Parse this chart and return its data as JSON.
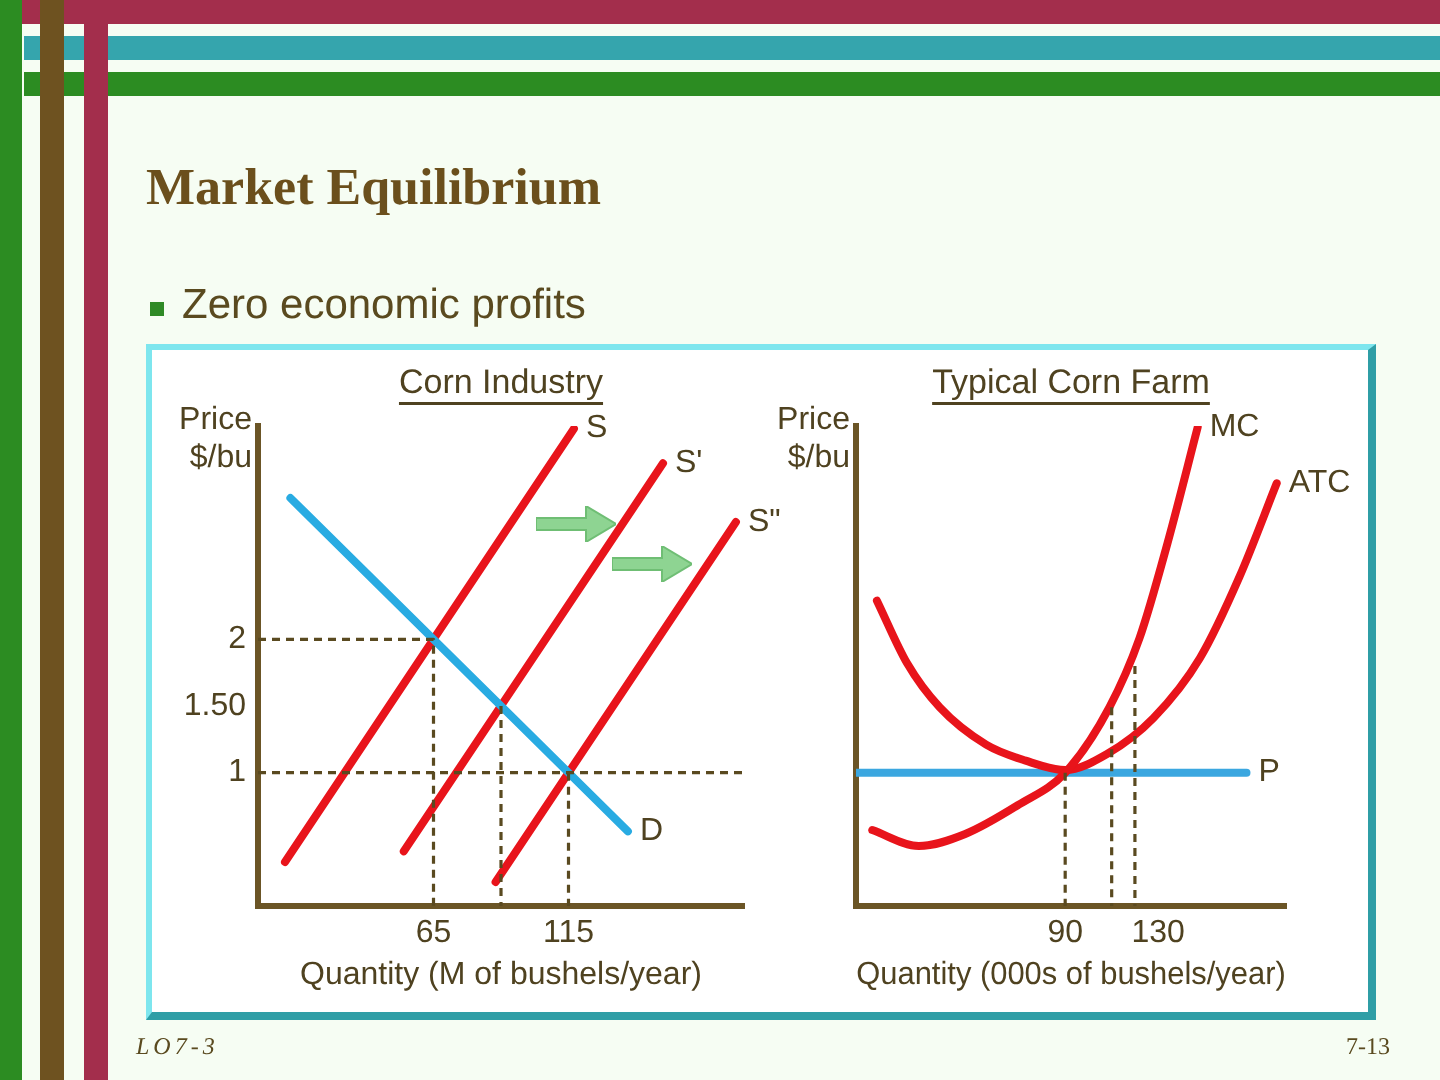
{
  "chart_data": [
    {
      "type": "line",
      "title": "Corn Industry",
      "xlabel": "Quantity (M of bushels/year)",
      "ylabel": "Price $/bu",
      "xlim": [
        0,
        180
      ],
      "xticks": [
        65,
        115
      ],
      "ylim": [
        0,
        3.6
      ],
      "yticks": [
        2,
        {
          "value": 1.5,
          "label": "1.50"
        },
        1
      ],
      "marker": "none",
      "series": [
        {
          "name": "D",
          "color": "#29abe2",
          "x": [
            12,
            137
          ],
          "values": [
            3.06,
            0.56
          ]
        },
        {
          "name": "S",
          "color": "#e8141b",
          "x": [
            10,
            117
          ],
          "values": [
            0.33,
            3.58
          ]
        },
        {
          "name": "S'",
          "color": "#e8141b",
          "x": [
            54,
            150
          ],
          "values": [
            0.41,
            3.32
          ]
        },
        {
          "name": "S\"",
          "color": "#e8141b",
          "x": [
            88,
            177
          ],
          "values": [
            0.18,
            2.88
          ]
        },
        {
          "color": "#5a4a20",
          "line_style": "dashed",
          "x": [
            0,
            65,
            65
          ],
          "values": [
            2,
            2,
            0
          ]
        },
        {
          "color": "#5a4a20",
          "line_style": "dashed",
          "x": [
            90,
            90
          ],
          "values": [
            1.5,
            0
          ]
        },
        {
          "color": "#5a4a20",
          "line_style": "dashed",
          "x": [
            0,
            180
          ],
          "values": [
            1,
            1
          ]
        },
        {
          "color": "#5a4a20",
          "line_style": "dashed",
          "x": [
            115,
            115
          ],
          "values": [
            1,
            0
          ]
        }
      ],
      "annotations": [
        "Market Equilibrium",
        "Zero economic profits",
        "LO7-3"
      ]
    },
    {
      "type": "line",
      "title": "Typical Corn Farm",
      "xlabel": "Quantity (000s of bushels/year)",
      "ylabel": "Price $/bu",
      "xlim": [
        0,
        185
      ],
      "xticks": [
        90,
        130
      ],
      "ylim": [
        0,
        3.6
      ],
      "tick_labels": "x",
      "marker": "none",
      "series": [
        {
          "name": "MC",
          "color": "#e8141b",
          "x": [
            7,
            27,
            47,
            70,
            90,
            109,
            122,
            134,
            147
          ],
          "values": [
            0.57,
            0.45,
            0.54,
            0.76,
            1.0,
            1.49,
            2.01,
            2.72,
            3.59
          ]
        },
        {
          "name": "ATC",
          "color": "#e8141b",
          "x": [
            9,
            22,
            36,
            56,
            73,
            90,
            108,
            128,
            148,
            165,
            181
          ],
          "values": [
            2.29,
            1.82,
            1.49,
            1.21,
            1.09,
            1.02,
            1.14,
            1.41,
            1.86,
            2.47,
            3.17
          ]
        },
        {
          "name": "P",
          "color": "#3ba7e0",
          "x": [
            0,
            168
          ],
          "values": [
            1,
            1
          ]
        },
        {
          "color": "#5a4a20",
          "line_style": "dashed",
          "x": [
            90,
            90
          ],
          "values": [
            1,
            0
          ]
        },
        {
          "color": "#5a4a20",
          "line_style": "dashed",
          "x": [
            110,
            110
          ],
          "values": [
            1.49,
            0
          ]
        },
        {
          "color": "#5a4a20",
          "line_style": "dashed",
          "x": [
            120,
            120
          ],
          "values": [
            1.8,
            0
          ]
        }
      ],
      "annotations": [
        "7-13"
      ]
    }
  ]
}
